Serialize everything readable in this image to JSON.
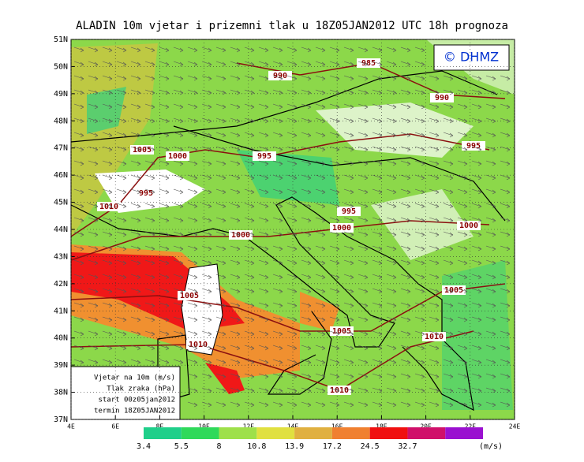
{
  "header": {
    "title": "ALADIN 10m vjetar i prizemni tlak u 18Z05JAN2012 UTC 18h prognoza"
  },
  "logo": "© DHMZ",
  "map": {
    "lat_labels": [
      "37N",
      "38N",
      "39N",
      "40N",
      "41N",
      "42N",
      "43N",
      "44N",
      "45N",
      "46N",
      "47N",
      "48N",
      "49N",
      "50N",
      "51N"
    ],
    "lon_labels": [
      "4E",
      "6E",
      "8E",
      "10E",
      "12E",
      "14E",
      "16E",
      "18E",
      "20E",
      "22E",
      "24E"
    ],
    "isobar_labels": [
      "985",
      "990",
      "990",
      "995",
      "1005",
      "1000",
      "995",
      "995",
      "1010",
      "995",
      "1000",
      "1000",
      "1000",
      "1005",
      "1005",
      "1005",
      "1010",
      "1010",
      "1010"
    ]
  },
  "info_box": [
    "Vjetar na 10m (m/s)",
    "Tlak zraka (hPa)",
    "start 00z05jan2012",
    "termin 18Z05JAN2012"
  ],
  "colorbar": {
    "colors": [
      "#1fcf8a",
      "#2fd95a",
      "#9ee04a",
      "#e0e040",
      "#e0b040",
      "#f08030",
      "#f01010",
      "#d0106a",
      "#9a10d0"
    ],
    "labels": [
      "3.4",
      "5.5",
      "8",
      "10.8",
      "13.9",
      "17.2",
      "24.5",
      "32.7"
    ],
    "unit": "(m/s)"
  }
}
